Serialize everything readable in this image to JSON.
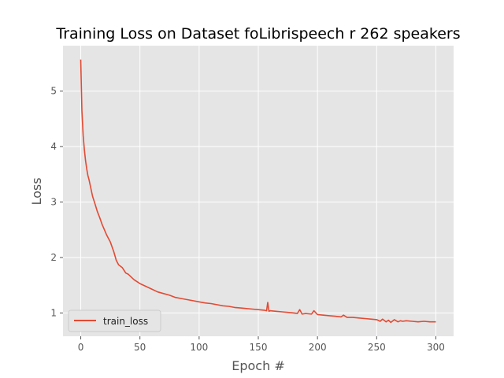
{
  "chart_data": {
    "type": "line",
    "title": "Training Loss on Dataset foLibrispeech r 262 speakers",
    "xlabel": "Epoch #",
    "ylabel": "Loss",
    "xlim": [
      -15,
      315
    ],
    "ylim": [
      0.58,
      5.82
    ],
    "xticks": [
      0,
      50,
      100,
      150,
      200,
      250,
      300
    ],
    "yticks": [
      1,
      2,
      3,
      4,
      5
    ],
    "grid": true,
    "legend_position": "lower-left",
    "colors": {
      "plot_bg": "#e5e5e5",
      "grid": "#ffffff",
      "series": "#e24a33"
    },
    "series": [
      {
        "name": "train_loss",
        "x": [
          0,
          1,
          2,
          3,
          4,
          5,
          6,
          7,
          8,
          10,
          12,
          14,
          16,
          18,
          20,
          22,
          25,
          28,
          30,
          32,
          35,
          38,
          40,
          45,
          50,
          55,
          60,
          65,
          70,
          75,
          80,
          85,
          90,
          95,
          100,
          105,
          110,
          115,
          120,
          125,
          130,
          135,
          140,
          145,
          150,
          155,
          157,
          158,
          159,
          160,
          165,
          170,
          175,
          180,
          183,
          185,
          187,
          190,
          195,
          197,
          200,
          205,
          210,
          215,
          220,
          222,
          225,
          230,
          235,
          240,
          245,
          250,
          253,
          255,
          258,
          260,
          262,
          265,
          268,
          270,
          272,
          275,
          280,
          285,
          290,
          295,
          300
        ],
        "y": [
          5.57,
          4.65,
          4.2,
          3.95,
          3.75,
          3.6,
          3.48,
          3.4,
          3.3,
          3.1,
          2.97,
          2.83,
          2.72,
          2.6,
          2.5,
          2.4,
          2.28,
          2.1,
          1.95,
          1.87,
          1.82,
          1.72,
          1.7,
          1.6,
          1.53,
          1.48,
          1.43,
          1.38,
          1.35,
          1.32,
          1.28,
          1.26,
          1.24,
          1.22,
          1.2,
          1.18,
          1.17,
          1.15,
          1.13,
          1.12,
          1.1,
          1.09,
          1.08,
          1.07,
          1.06,
          1.05,
          1.04,
          1.19,
          1.03,
          1.04,
          1.03,
          1.02,
          1.01,
          1.0,
          0.99,
          1.06,
          0.98,
          0.99,
          0.98,
          1.04,
          0.97,
          0.96,
          0.95,
          0.94,
          0.93,
          0.96,
          0.92,
          0.92,
          0.91,
          0.9,
          0.89,
          0.88,
          0.85,
          0.89,
          0.84,
          0.87,
          0.83,
          0.88,
          0.84,
          0.86,
          0.85,
          0.86,
          0.85,
          0.84,
          0.85,
          0.84,
          0.84
        ]
      }
    ]
  }
}
